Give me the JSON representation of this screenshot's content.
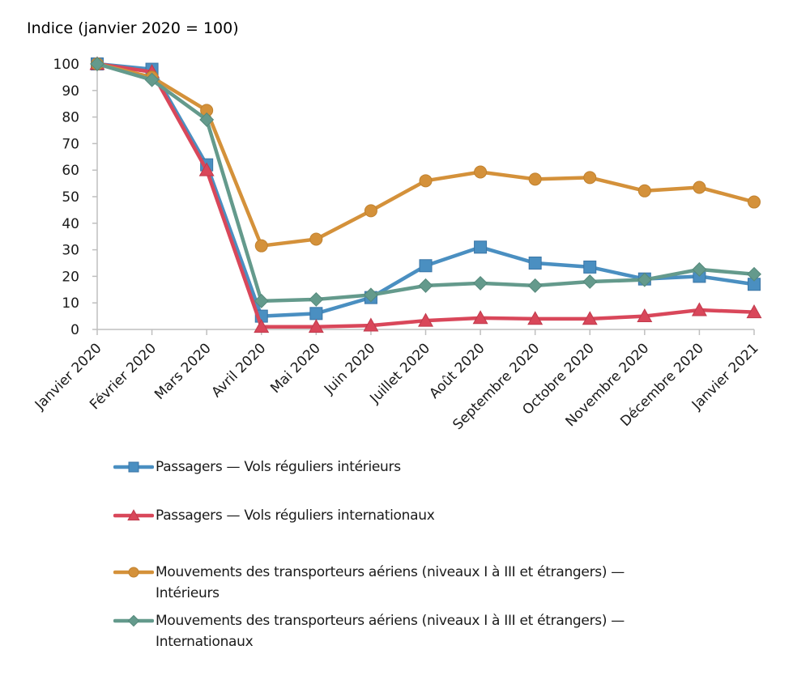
{
  "chart_data": {
    "type": "line",
    "title": "",
    "ylabel": "Indice (janvier 2020 = 100)",
    "xlabel": "",
    "ylim": [
      0,
      100
    ],
    "yticks": [
      0,
      10,
      20,
      30,
      40,
      50,
      60,
      70,
      80,
      90,
      100
    ],
    "grid": false,
    "legend_position": "bottom",
    "categories": [
      "Janvier 2020",
      "Février 2020",
      "Mars 2020",
      "Avril 2020",
      "Mai 2020",
      "Juin 2020",
      "Juillet 2020",
      "Août 2020",
      "Septembre 2020",
      "Octobre 2020",
      "Novembre 2020",
      "Décembre 2020",
      "Janvier 2021"
    ],
    "series": [
      {
        "name": "Passagers — Vols réguliers intérieurs",
        "legend_lines": [
          "Passagers — Vols réguliers intérieurs"
        ],
        "marker": "square",
        "color": "#4a8fc1",
        "edge": "#3a75a6",
        "values": [
          100,
          98,
          62,
          5,
          6,
          12,
          24,
          31,
          25,
          23.5,
          19,
          20,
          17
        ]
      },
      {
        "name": "Passagers — Vols réguliers internationaux",
        "legend_lines": [
          "Passagers — Vols réguliers internationaux"
        ],
        "marker": "triangle",
        "color": "#d9475a",
        "edge": "#c03a4c",
        "values": [
          100,
          97,
          60,
          1,
          1,
          1.5,
          3.3,
          4.3,
          4,
          4,
          5,
          7.3,
          6.5
        ]
      },
      {
        "name": "Mouvements des transporteurs aériens (niveaux I à III et étrangers) — Intérieurs",
        "legend_lines": [
          "Mouvements des transporteurs aériens (niveaux I à III et étrangers) —",
          "Intérieurs"
        ],
        "marker": "circle",
        "color": "#d4913a",
        "edge": "#c0812e",
        "values": [
          100,
          95,
          82.5,
          31.5,
          34,
          44.7,
          56,
          59.3,
          56.6,
          57.2,
          52.2,
          53.5,
          48
        ]
      },
      {
        "name": "Mouvements des transporteurs aériens (niveaux I à III et étrangers) — Internationaux",
        "legend_lines": [
          "Mouvements des transporteurs aériens (niveaux I à III et étrangers) —",
          "Internationaux"
        ],
        "marker": "diamond",
        "color": "#649a8c",
        "edge": "#55897b",
        "values": [
          100,
          94,
          79,
          10.7,
          11.3,
          13,
          16.5,
          17.4,
          16.5,
          18,
          18.7,
          22.6,
          20.8
        ]
      }
    ]
  }
}
